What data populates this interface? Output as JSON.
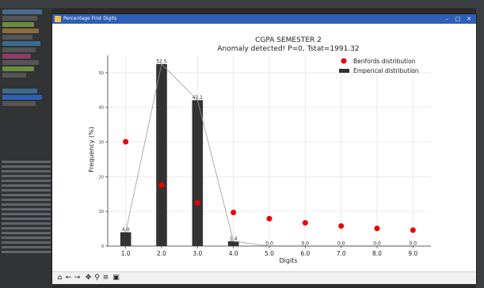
{
  "window": {
    "title": "Percentage First Digits",
    "controls": [
      "–",
      "□",
      "✕"
    ]
  },
  "toolbar": {
    "icons": [
      "home-icon",
      "back-icon",
      "forward-icon",
      "pan-icon",
      "zoom-icon",
      "configure-icon",
      "save-icon"
    ],
    "glyphs": [
      "⌂",
      "←",
      "→",
      "✥",
      "⚲",
      "≡",
      "▣"
    ]
  },
  "colors": {
    "bars": "#333333",
    "benford": "#ee0000",
    "line": "#999999",
    "titlebar": "#2d5fb7"
  },
  "chart_data": {
    "type": "bar",
    "title": "CGPA SEMESTER 2",
    "subtitle": "Anomaly detected! P=0, Tstat=1991.32",
    "xlabel": "Digits",
    "ylabel": "Frequency (%)",
    "categories": [
      "1.0",
      "2.0",
      "3.0",
      "4.0",
      "5.0",
      "6.0",
      "7.0",
      "8.0",
      "9.0"
    ],
    "x": [
      1,
      2,
      3,
      4,
      5,
      6,
      7,
      8,
      9
    ],
    "xlim": [
      0.5,
      9.5
    ],
    "ylim": [
      0,
      55
    ],
    "yticks": [
      0,
      10,
      20,
      30,
      40,
      50
    ],
    "grid": true,
    "legend": "top-right",
    "series": [
      {
        "name": "Emperical distribution",
        "type": "bar",
        "values": [
          4.0,
          52.5,
          42.1,
          1.4,
          0.0,
          0.0,
          0.0,
          0.0,
          0.0
        ],
        "labels": [
          "4.0",
          "52.5",
          "42.1",
          "1.4",
          "0.0",
          "0.0",
          "0.0",
          "0.0",
          "0.0"
        ]
      },
      {
        "name": "Benfords distribution",
        "type": "scatter",
        "values": [
          30.1,
          17.6,
          12.5,
          9.7,
          7.9,
          6.7,
          5.8,
          5.1,
          4.6
        ]
      }
    ]
  }
}
